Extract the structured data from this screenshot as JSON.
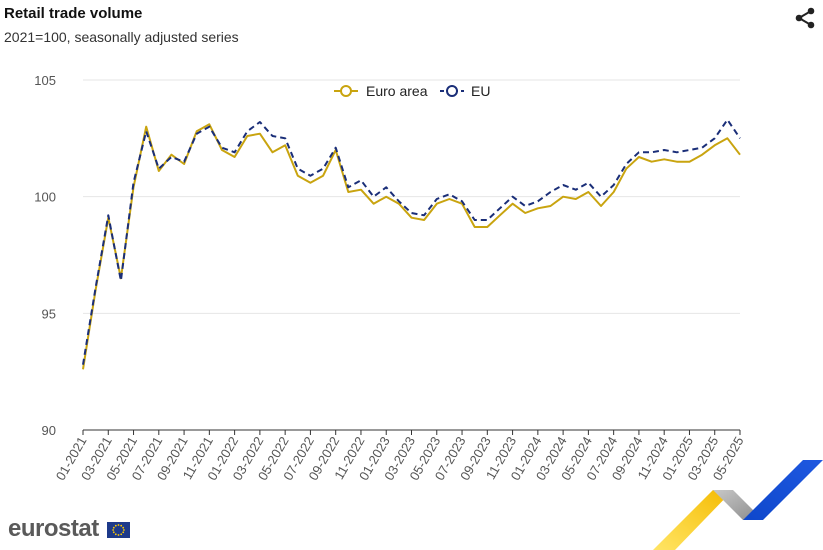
{
  "header": {
    "title": "Retail trade volume",
    "subtitle": "2021=100, seasonally adjusted series"
  },
  "logo": {
    "text": "eurostat"
  },
  "colors": {
    "euro_area": "#c9a40f",
    "eu": "#1a2e78",
    "grid": "#e6e6e6",
    "axis": "#333333"
  },
  "chart_data": {
    "type": "line",
    "title": "Retail trade volume",
    "subtitle": "2021=100, seasonally adjusted series",
    "xlabel": "",
    "ylabel": "",
    "ylim": [
      90,
      105
    ],
    "yticks": [
      90,
      95,
      100,
      105
    ],
    "grid": true,
    "legend_position": "top-center",
    "x": [
      "01-2021",
      "02-2021",
      "03-2021",
      "04-2021",
      "05-2021",
      "06-2021",
      "07-2021",
      "08-2021",
      "09-2021",
      "10-2021",
      "11-2021",
      "12-2021",
      "01-2022",
      "02-2022",
      "03-2022",
      "04-2022",
      "05-2022",
      "06-2022",
      "07-2022",
      "08-2022",
      "09-2022",
      "10-2022",
      "11-2022",
      "12-2022",
      "01-2023",
      "02-2023",
      "03-2023",
      "04-2023",
      "05-2023",
      "06-2023",
      "07-2023",
      "08-2023",
      "09-2023",
      "10-2023",
      "11-2023",
      "12-2023",
      "01-2024",
      "02-2024",
      "03-2024",
      "04-2024",
      "05-2024",
      "06-2024",
      "07-2024",
      "08-2024",
      "09-2024",
      "10-2024",
      "11-2024",
      "12-2024",
      "01-2025",
      "02-2025",
      "03-2025",
      "04-2025",
      "05-2025"
    ],
    "tick_labels": [
      "01-2021",
      "03-2021",
      "05-2021",
      "07-2021",
      "09-2021",
      "11-2021",
      "01-2022",
      "03-2022",
      "05-2022",
      "07-2022",
      "09-2022",
      "11-2022",
      "01-2023",
      "03-2023",
      "05-2023",
      "07-2023",
      "09-2023",
      "11-2023",
      "01-2024",
      "03-2024",
      "05-2024",
      "07-2024",
      "09-2024",
      "11-2024",
      "01-2025",
      "03-2025",
      "05-2025"
    ],
    "series": [
      {
        "name": "Euro area",
        "style": "solid",
        "values": [
          92.6,
          96.0,
          99.1,
          96.5,
          100.4,
          103.0,
          101.1,
          101.8,
          101.4,
          102.8,
          103.1,
          102.0,
          101.7,
          102.6,
          102.7,
          101.9,
          102.2,
          100.9,
          100.6,
          100.9,
          102.0,
          100.2,
          100.3,
          99.7,
          100.0,
          99.7,
          99.1,
          99.0,
          99.7,
          99.9,
          99.7,
          98.7,
          98.7,
          99.2,
          99.7,
          99.3,
          99.5,
          99.6,
          100.0,
          99.9,
          100.2,
          99.6,
          100.2,
          101.2,
          101.7,
          101.5,
          101.6,
          101.5,
          101.5,
          101.8,
          102.2,
          102.5,
          101.8
        ]
      },
      {
        "name": "EU",
        "style": "dashed",
        "values": [
          92.8,
          96.1,
          99.2,
          96.4,
          100.6,
          102.8,
          101.2,
          101.7,
          101.5,
          102.7,
          103.0,
          102.1,
          101.9,
          102.8,
          103.2,
          102.6,
          102.5,
          101.2,
          100.9,
          101.2,
          102.1,
          100.4,
          100.7,
          100.0,
          100.4,
          99.8,
          99.3,
          99.2,
          99.9,
          100.1,
          99.8,
          99.0,
          99.0,
          99.5,
          100.0,
          99.6,
          99.8,
          100.2,
          100.5,
          100.3,
          100.6,
          100.0,
          100.5,
          101.4,
          101.9,
          101.9,
          102.0,
          101.9,
          102.0,
          102.1,
          102.5,
          103.3,
          102.5
        ]
      }
    ]
  }
}
